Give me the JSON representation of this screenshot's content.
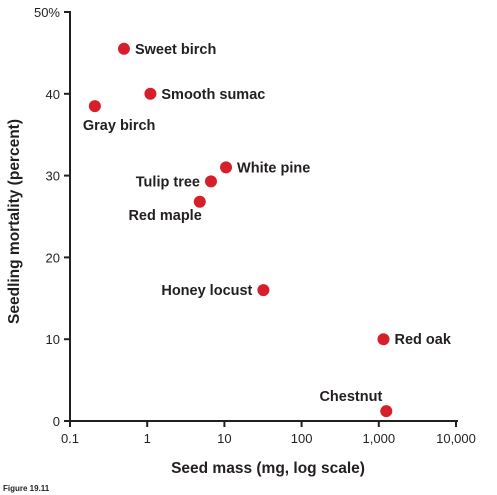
{
  "figure_caption": "Figure 19.11",
  "chart_data": {
    "type": "scatter",
    "xlabel": "Seed mass (mg, log scale)",
    "ylabel": "Seedling mortality (percent)",
    "x_scale": "log",
    "xlim": [
      0.1,
      10000
    ],
    "ylim": [
      0,
      50
    ],
    "x_ticks": [
      {
        "value": 0.1,
        "label": "0.1"
      },
      {
        "value": 1,
        "label": "1"
      },
      {
        "value": 10,
        "label": "10"
      },
      {
        "value": 100,
        "label": "100"
      },
      {
        "value": 1000,
        "label": "1,000"
      },
      {
        "value": 10000,
        "label": "10,000"
      }
    ],
    "y_ticks": [
      {
        "value": 0,
        "label": "0"
      },
      {
        "value": 10,
        "label": "10"
      },
      {
        "value": 20,
        "label": "20"
      },
      {
        "value": 30,
        "label": "30"
      },
      {
        "value": 40,
        "label": "40"
      },
      {
        "value": 50,
        "label": "50%"
      }
    ],
    "grid": false,
    "marker_color": "#d71f2c",
    "points": [
      {
        "label": "Sweet birch",
        "x": 0.5,
        "y": 45.5,
        "label_pos": "right"
      },
      {
        "label": "Smooth sumac",
        "x": 1.1,
        "y": 40,
        "label_pos": "right"
      },
      {
        "label": "Gray birch",
        "x": 0.21,
        "y": 38.5,
        "label_pos": "below-right"
      },
      {
        "label": "White pine",
        "x": 10.5,
        "y": 31,
        "label_pos": "right"
      },
      {
        "label": "Tulip tree",
        "x": 6.7,
        "y": 29.3,
        "label_pos": "left"
      },
      {
        "label": "Red maple",
        "x": 4.8,
        "y": 26.8,
        "label_pos": "below-left"
      },
      {
        "label": "Honey locust",
        "x": 32,
        "y": 16,
        "label_pos": "left"
      },
      {
        "label": "Red oak",
        "x": 1150,
        "y": 10,
        "label_pos": "right"
      },
      {
        "label": "Chestnut",
        "x": 1250,
        "y": 1.2,
        "label_pos": "above-left"
      }
    ]
  }
}
